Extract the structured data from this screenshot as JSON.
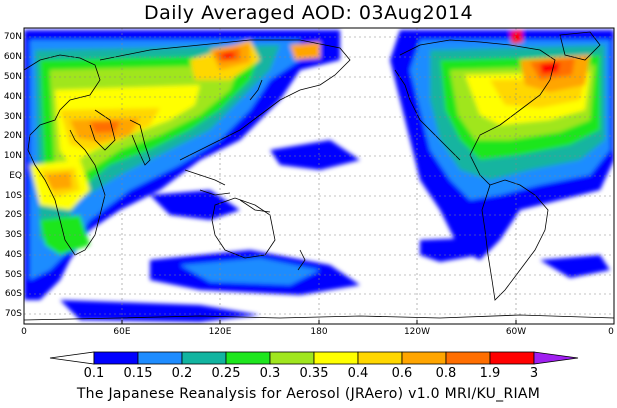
{
  "title": "Daily Averaged AOD: 03Aug2014",
  "footer": "The Japanese Reanalysis for Aerosol (JRAero) v1.0 MRI/KU_RIAM",
  "lat_labels": [
    "70N",
    "60N",
    "50N",
    "40N",
    "30N",
    "20N",
    "10N",
    "EQ",
    "10S",
    "20S",
    "30S",
    "40S",
    "50S",
    "60S",
    "70S"
  ],
  "lon_labels": [
    "0",
    "60E",
    "120E",
    "180",
    "120W",
    "60W",
    "0"
  ],
  "colorbar": {
    "levels": [
      "0.1",
      "0.15",
      "0.2",
      "0.25",
      "0.3",
      "0.35",
      "0.4",
      "0.6",
      "0.8",
      "1.9",
      "3"
    ],
    "colors": [
      "#ffffff",
      "#0000ff",
      "#1e8cff",
      "#12b4a0",
      "#1ee61e",
      "#a0e61e",
      "#ffff00",
      "#ffd700",
      "#ffa500",
      "#ff6e00",
      "#ff0000",
      "#a020f0"
    ]
  },
  "colors": {
    "land_outline": "#000000",
    "grid": "#888888"
  }
}
